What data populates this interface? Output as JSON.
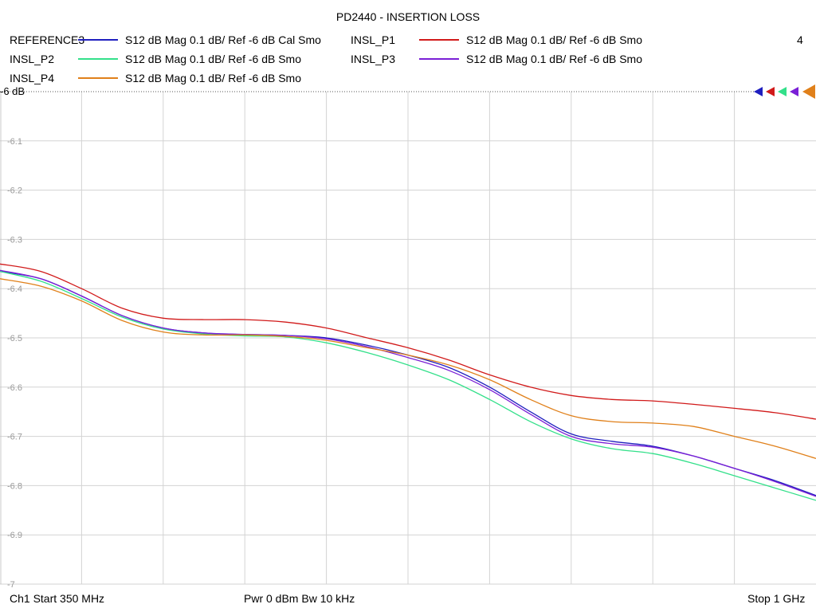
{
  "title": "PD2440 - INSERTION LOSS",
  "channel_number": "4",
  "legend": [
    {
      "name": "REFERENCE3",
      "desc": "S12  dB Mag  0.1 dB/ Ref -6 dB  Cal Smo",
      "color": "#1f1fbf"
    },
    {
      "name": "INSL_P1",
      "desc": "S12  dB Mag  0.1 dB/ Ref -6 dB  Smo",
      "color": "#d11a1a"
    },
    {
      "name": "INSL_P2",
      "desc": "S12  dB Mag  0.1 dB/ Ref -6 dB  Smo",
      "color": "#33e08a"
    },
    {
      "name": "INSL_P3",
      "desc": "S12  dB Mag  0.1 dB/ Ref -6 dB  Smo",
      "color": "#7a1fd6"
    },
    {
      "name": "INSL_P4",
      "desc": "S12  dB Mag  0.1 dB/ Ref -6 dB  Smo",
      "color": "#e0801a"
    }
  ],
  "footer": {
    "start": "Ch1  Start  350 MHz",
    "power": "Pwr  0 dBm  Bw  10 kHz",
    "stop": "Stop  1 GHz"
  },
  "chart_data": {
    "type": "line",
    "title": "PD2440 - INSERTION LOSS",
    "xlabel": "",
    "ylabel": "",
    "xlim": [
      350,
      1000
    ],
    "x_unit": "MHz",
    "ylim": [
      -7.0,
      -6.0
    ],
    "ytick_labels": [
      "-6 dB",
      "-6.1",
      "-6.2",
      "-6.3",
      "-6.4",
      "-6.5",
      "-6.6",
      "-6.7",
      "-6.8",
      "-6.9",
      "-7"
    ],
    "reference_level": -6.0,
    "grid": true,
    "legend_position": "top",
    "x": [
      350,
      382.5,
      415,
      447.5,
      480,
      512.5,
      545,
      577.5,
      610,
      642.5,
      675,
      707.5,
      740,
      772.5,
      805,
      837.5,
      870,
      902.5,
      935,
      967.5,
      1000
    ],
    "series": [
      {
        "name": "REFERENCE3",
        "color": "#1f1fbf",
        "values": [
          -6.365,
          -6.38,
          -6.415,
          -6.455,
          -6.48,
          -6.49,
          -6.493,
          -6.495,
          -6.5,
          -6.515,
          -6.535,
          -6.56,
          -6.6,
          -6.65,
          -6.695,
          -6.71,
          -6.72,
          -6.74,
          -6.765,
          -6.79,
          -6.82
        ]
      },
      {
        "name": "INSL_P1",
        "color": "#d11a1a",
        "values": [
          -6.35,
          -6.365,
          -6.4,
          -6.44,
          -6.46,
          -6.463,
          -6.463,
          -6.468,
          -6.48,
          -6.5,
          -6.52,
          -6.545,
          -6.575,
          -6.6,
          -6.617,
          -6.625,
          -6.628,
          -6.635,
          -6.643,
          -6.652,
          -6.665
        ]
      },
      {
        "name": "INSL_P2",
        "color": "#33e08a",
        "values": [
          -6.365,
          -6.385,
          -6.42,
          -6.458,
          -6.482,
          -6.492,
          -6.496,
          -6.498,
          -6.51,
          -6.53,
          -6.555,
          -6.585,
          -6.625,
          -6.67,
          -6.705,
          -6.725,
          -6.735,
          -6.755,
          -6.78,
          -6.805,
          -6.83
        ]
      },
      {
        "name": "INSL_P3",
        "color": "#7a1fd6",
        "values": [
          -6.363,
          -6.38,
          -6.415,
          -6.455,
          -6.48,
          -6.49,
          -6.493,
          -6.495,
          -6.502,
          -6.518,
          -6.54,
          -6.566,
          -6.605,
          -6.655,
          -6.7,
          -6.715,
          -6.722,
          -6.74,
          -6.765,
          -6.792,
          -6.822
        ]
      },
      {
        "name": "INSL_P4",
        "color": "#e0801a",
        "values": [
          -6.38,
          -6.395,
          -6.425,
          -6.465,
          -6.488,
          -6.494,
          -6.494,
          -6.497,
          -6.505,
          -6.52,
          -6.535,
          -6.555,
          -6.585,
          -6.625,
          -6.658,
          -6.67,
          -6.673,
          -6.68,
          -6.7,
          -6.72,
          -6.745
        ]
      }
    ]
  }
}
